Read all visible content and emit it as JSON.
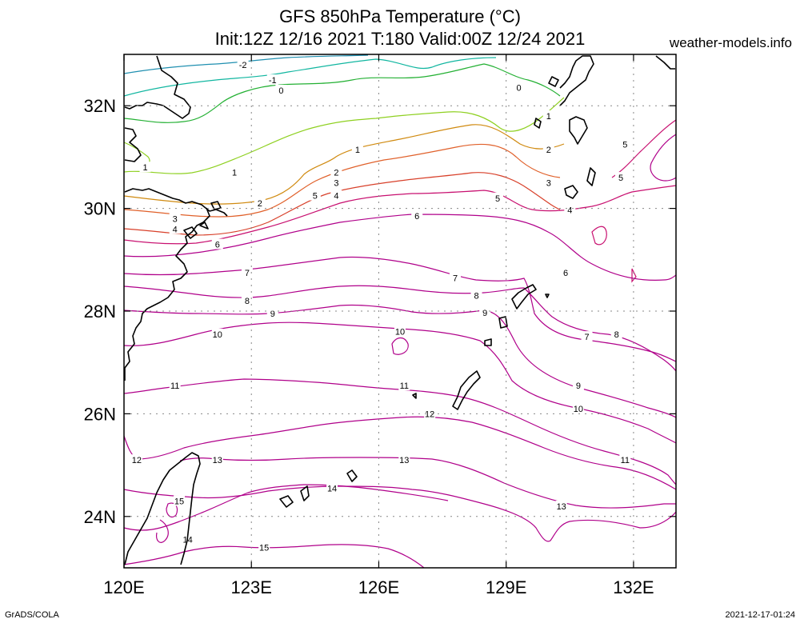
{
  "title_line1": "GFS 850hPa Temperature (°C)",
  "title_line2": "Init:12Z 12/16 2021 T:180 Valid:00Z 12/24 2021",
  "site": "weather-models.info",
  "footer_left": "GrADS/COLA",
  "footer_right": "2021-12-17-01:24",
  "map": {
    "lon_range": [
      120,
      133
    ],
    "lat_range": [
      23,
      33
    ],
    "lon_ticks": [
      "120E",
      "123E",
      "126E",
      "129E",
      "132E"
    ],
    "lat_ticks": [
      "24N",
      "26N",
      "28N",
      "30N",
      "32N"
    ]
  },
  "chart_data": {
    "type": "contour",
    "variable": "850hPa Temperature (°C)",
    "contours": [
      {
        "level": -2,
        "color": "#1f8fb0",
        "labels": [
          [
            122.8,
            32.8
          ]
        ]
      },
      {
        "level": -1,
        "color": "#11b6a0",
        "labels": [
          [
            123.5,
            32.5
          ]
        ]
      },
      {
        "level": 0,
        "color": "#23b033",
        "labels": [
          [
            123.7,
            32.3
          ],
          [
            129.3,
            32.35
          ]
        ]
      },
      {
        "level": 1,
        "color": "#8ed020",
        "labels": [
          [
            120.5,
            30.8
          ],
          [
            122.6,
            30.7
          ],
          [
            125.5,
            31.15
          ],
          [
            130.0,
            31.8
          ]
        ]
      },
      {
        "level": 2,
        "color": "#d08a10",
        "labels": [
          [
            123.2,
            30.1
          ],
          [
            125.0,
            30.7
          ],
          [
            130.0,
            31.15
          ]
        ]
      },
      {
        "level": 3,
        "color": "#e0602a",
        "labels": [
          [
            121.2,
            29.8
          ],
          [
            125.0,
            30.5
          ],
          [
            130.0,
            30.5
          ]
        ]
      },
      {
        "level": 4,
        "color": "#d8402a",
        "labels": [
          [
            121.2,
            29.6
          ],
          [
            125.0,
            30.25
          ],
          [
            130.5,
            29.97
          ]
        ]
      },
      {
        "level": 5,
        "color": "#c81070",
        "labels": [
          [
            124.5,
            30.25
          ],
          [
            128.8,
            30.2
          ],
          [
            131.8,
            31.25
          ],
          [
            131.7,
            30.6
          ]
        ]
      },
      {
        "level": 6,
        "color": "#b0008a",
        "labels": [
          [
            122.2,
            29.3
          ],
          [
            126.9,
            29.85
          ],
          [
            130.4,
            28.75
          ]
        ]
      },
      {
        "level": 7,
        "color": "#b0008a",
        "labels": [
          [
            122.9,
            28.75
          ],
          [
            127.8,
            28.65
          ],
          [
            130.9,
            27.5
          ]
        ]
      },
      {
        "level": 8,
        "color": "#b0008a",
        "labels": [
          [
            122.9,
            28.2
          ],
          [
            128.3,
            28.3
          ],
          [
            131.6,
            27.55
          ]
        ]
      },
      {
        "level": 9,
        "color": "#b0008a",
        "labels": [
          [
            123.5,
            27.95
          ],
          [
            128.5,
            27.97
          ],
          [
            130.7,
            26.55
          ]
        ]
      },
      {
        "level": 10,
        "color": "#b0008a",
        "labels": [
          [
            122.2,
            27.55
          ],
          [
            126.5,
            27.6
          ],
          [
            130.7,
            26.1
          ]
        ]
      },
      {
        "level": 11,
        "color": "#b0008a",
        "labels": [
          [
            121.2,
            26.55
          ],
          [
            126.6,
            26.55
          ],
          [
            131.8,
            25.1
          ]
        ]
      },
      {
        "level": 12,
        "color": "#b0008a",
        "labels": [
          [
            120.3,
            25.1
          ],
          [
            127.2,
            26.0
          ]
        ]
      },
      {
        "level": 13,
        "color": "#b0008a",
        "labels": [
          [
            122.2,
            25.1
          ],
          [
            126.6,
            25.1
          ],
          [
            130.3,
            24.2
          ]
        ]
      },
      {
        "level": 14,
        "color": "#b0008a",
        "labels": [
          [
            121.5,
            23.55
          ],
          [
            124.9,
            24.55
          ]
        ]
      },
      {
        "level": 15,
        "color": "#b0008a",
        "labels": [
          [
            121.3,
            24.3
          ],
          [
            123.3,
            23.4
          ]
        ]
      }
    ]
  }
}
